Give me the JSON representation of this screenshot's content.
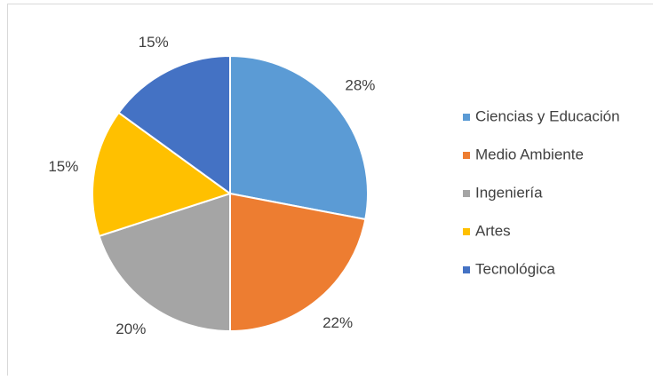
{
  "chart_data": {
    "type": "pie",
    "categories": [
      "Ciencias y Educación",
      "Medio Ambiente",
      "Ingeniería",
      "Artes",
      "Tecnológica"
    ],
    "values": [
      28,
      22,
      20,
      15,
      15
    ],
    "value_labels": [
      "28%",
      "22%",
      "20%",
      "15%",
      "15%"
    ],
    "colors": [
      "#5b9bd5",
      "#ed7d31",
      "#a5a5a5",
      "#ffc000",
      "#4472c4"
    ],
    "legend": "right"
  }
}
